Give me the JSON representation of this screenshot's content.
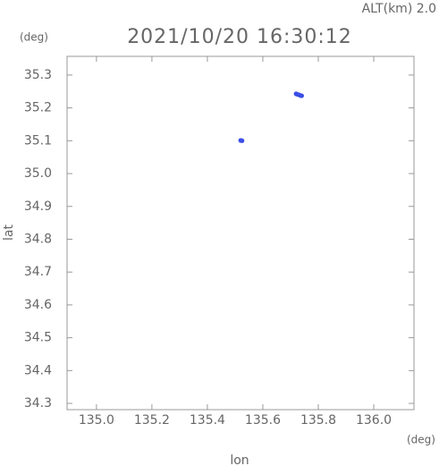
{
  "chart_data": {
    "type": "scatter",
    "title": "2021/10/20 16:30:12",
    "subtitle": "ALT(km) 2.0",
    "y_unit": "(deg)",
    "x_unit": "(deg)",
    "x_label": "lon",
    "y_label": "lat",
    "color": "#3b4ee6",
    "x": [
      135.52,
      135.525,
      135.72,
      135.725,
      135.73,
      135.735,
      135.74
    ],
    "values": [
      35.101,
      35.1,
      35.243,
      35.241,
      35.24,
      35.238,
      35.237
    ],
    "xlim": [
      134.894,
      136.145
    ],
    "ylim": [
      34.281,
      35.357
    ],
    "xticks": [
      {
        "value": 135.0,
        "label": "135.0"
      },
      135.2,
      135.4,
      135.6,
      135.8,
      {
        "value": 136.0,
        "label": "136.0"
      }
    ],
    "yticks": [
      34.3,
      34.4,
      34.5,
      34.6,
      34.7,
      34.8,
      34.9,
      {
        "value": 35.0,
        "label": "35.0"
      },
      35.1,
      35.2,
      35.3
    ]
  }
}
